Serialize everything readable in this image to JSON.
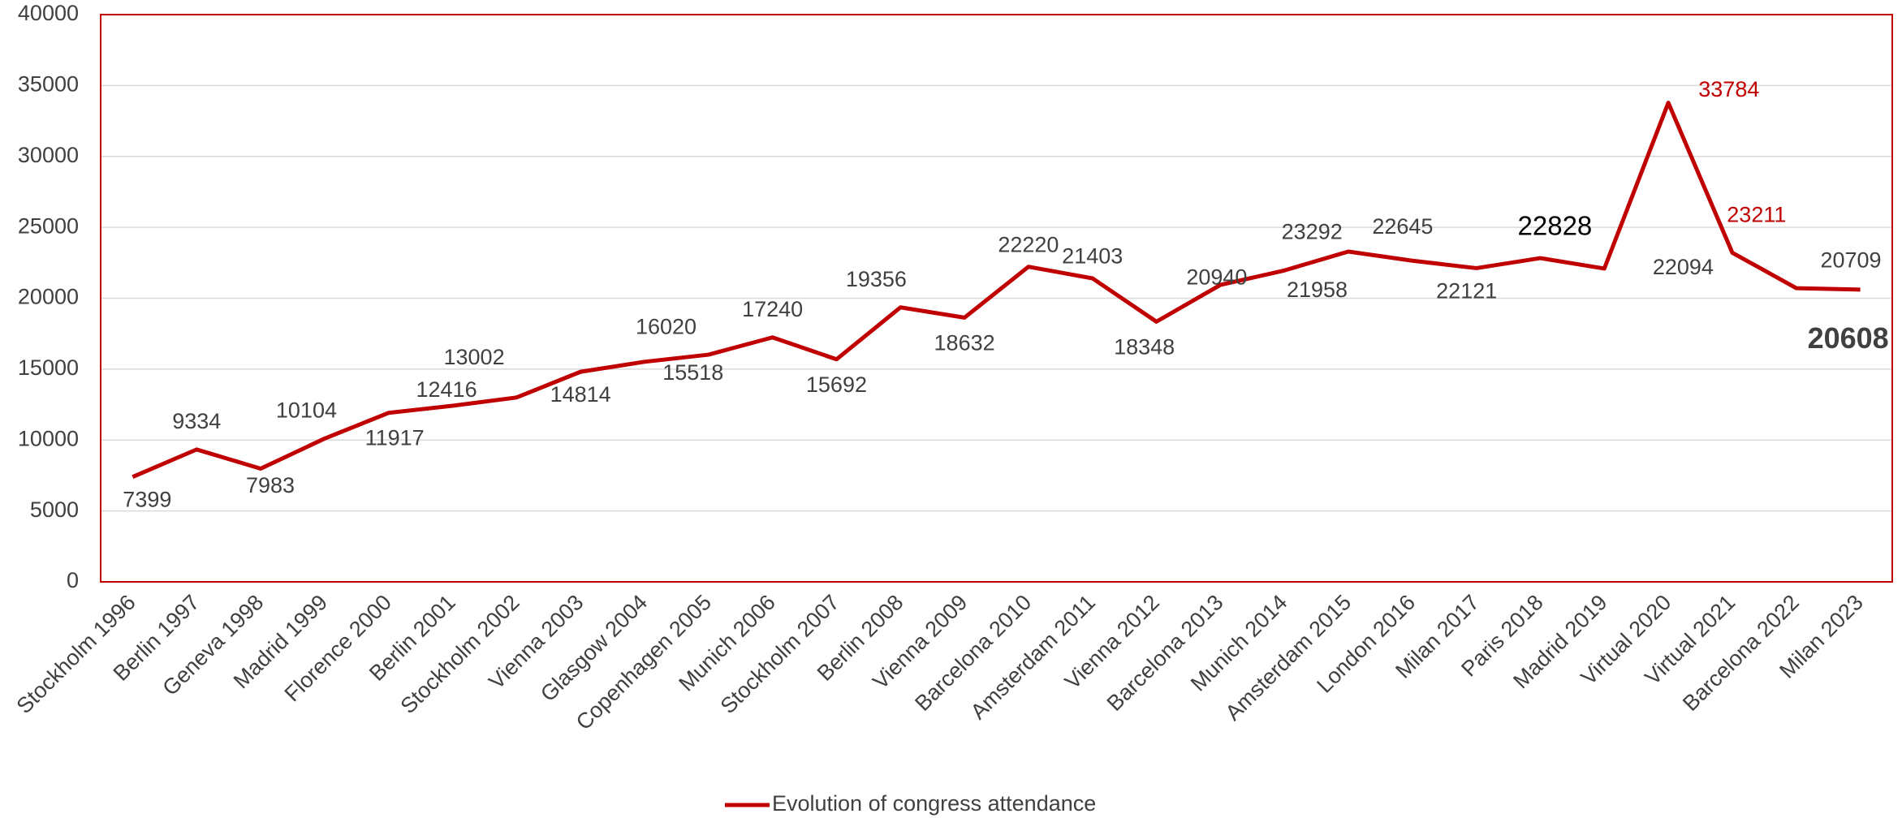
{
  "chart_data": {
    "type": "line",
    "categories": [
      "Stockholm 1996",
      "Berlin 1997",
      "Geneva 1998",
      "Madrid 1999",
      "Florence 2000",
      "Berlin 2001",
      "Stockholm 2002",
      "Vienna 2003",
      "Glasgow 2004",
      "Copenhagen 2005",
      "Munich 2006",
      "Stockholm 2007",
      "Berlin 2008",
      "Vienna 2009",
      "Barcelona 2010",
      "Amsterdam 2011",
      "Vienna 2012",
      "Barcelona 2013",
      "Munich 2014",
      "Amsterdam 2015",
      "London 2016",
      "Milan 2017",
      "Paris 2018",
      "Madrid 2019",
      "Virtual 2020",
      "Virtual 2021",
      "Barcelona 2022",
      "Milan 2023"
    ],
    "series": [
      {
        "name": "Evolution of congress attendance",
        "color": "#c00000",
        "values": [
          7399,
          9334,
          7983,
          10104,
          11917,
          12416,
          13002,
          14814,
          15518,
          16020,
          17240,
          15692,
          19356,
          18632,
          22220,
          21403,
          18348,
          20940,
          21958,
          23292,
          22645,
          22121,
          22828,
          22094,
          33784,
          23211,
          20709,
          20608
        ]
      }
    ],
    "ylim": [
      0,
      40000
    ],
    "yticks": [
      0,
      5000,
      10000,
      15000,
      20000,
      25000,
      30000,
      35000,
      40000
    ],
    "grid": true
  }
}
